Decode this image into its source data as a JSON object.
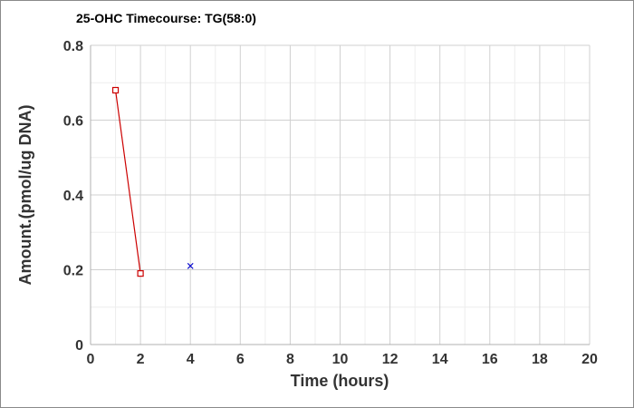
{
  "chart_data": {
    "type": "scatter",
    "title": "25-OHC Timecourse: TG(58:0)",
    "xlabel": "Time (hours)",
    "ylabel": "Amount.(pmol/ug DNA)",
    "xlim": [
      0,
      20
    ],
    "ylim": [
      0,
      0.8
    ],
    "x_ticks": [
      "0",
      "2",
      "4",
      "6",
      "8",
      "10",
      "12",
      "14",
      "16",
      "18",
      "20"
    ],
    "y_ticks": [
      "0",
      "0.2",
      "0.4",
      "0.6",
      "0.8"
    ],
    "grid": true,
    "series": [
      {
        "marker": "square",
        "line": true,
        "color": "#cc0000",
        "points": [
          {
            "x": 1,
            "y": 0.68
          },
          {
            "x": 2,
            "y": 0.19
          }
        ]
      },
      {
        "marker": "x",
        "line": false,
        "color": "#0000cc",
        "points": [
          {
            "x": 4,
            "y": 0.21
          }
        ]
      }
    ]
  }
}
